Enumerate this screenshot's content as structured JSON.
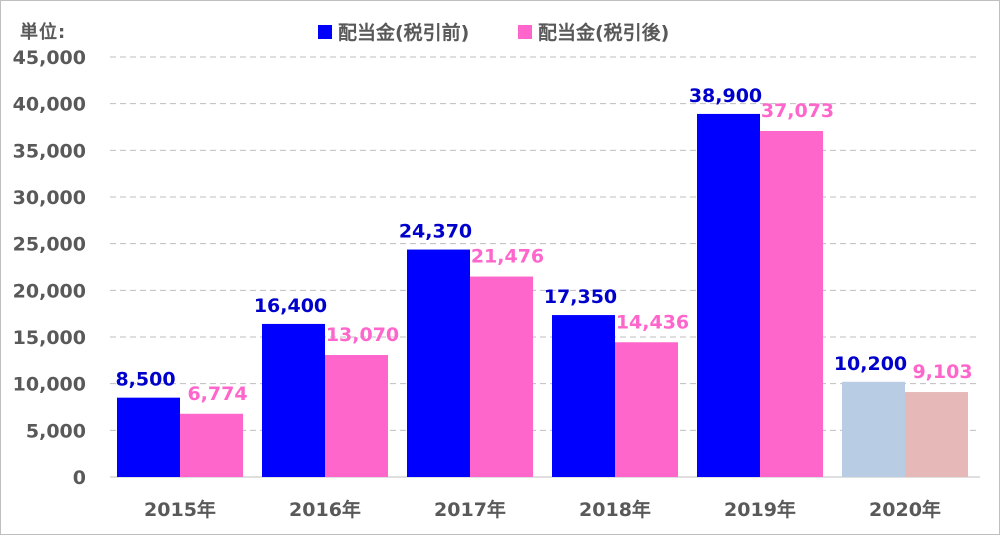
{
  "chart_data": {
    "type": "bar",
    "unit_label": "単位:",
    "categories": [
      "2015年",
      "2016年",
      "2017年",
      "2018年",
      "2019年",
      "2020年"
    ],
    "series": [
      {
        "name": "配当金(税引前)",
        "color": "#0000ff",
        "label_color": "#0000cc",
        "faded_color": "#b8cce4",
        "values": [
          8500,
          16400,
          24370,
          17350,
          38900,
          10200
        ],
        "labels": [
          "8,500",
          "16,400",
          "24,370",
          "17,350",
          "38,900",
          "10,200"
        ]
      },
      {
        "name": "配当金(税引後)",
        "color": "#ff66cc",
        "label_color": "#ff66cc",
        "faded_color": "#e6b9b8",
        "values": [
          6774,
          13070,
          21476,
          14436,
          37073,
          9103
        ],
        "labels": [
          "6,774",
          "13,070",
          "21,476",
          "14,436",
          "37,073",
          "9,103"
        ]
      }
    ],
    "faded_categories": [
      "2020年"
    ],
    "ylim": [
      0,
      45000
    ],
    "y_ticks": [
      0,
      5000,
      10000,
      15000,
      20000,
      25000,
      30000,
      35000,
      40000,
      45000
    ],
    "y_tick_labels": [
      "0",
      "5,000",
      "10,000",
      "15,000",
      "20,000",
      "25,000",
      "30,000",
      "35,000",
      "40,000",
      "45,000"
    ],
    "grid": true,
    "legend_position": "top-center"
  }
}
